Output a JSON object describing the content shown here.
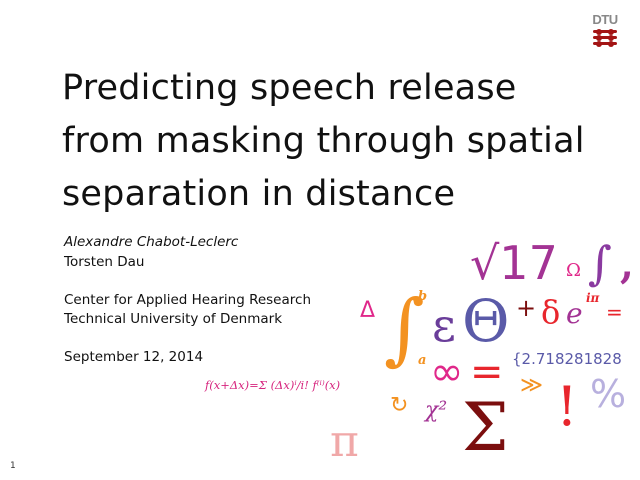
{
  "slide": {
    "title_lines": [
      "Predicting speech release",
      "from masking through spatial",
      "separation in distance"
    ],
    "authors": [
      "Alexandre Chabot-Leclerc",
      "Torsten Dau"
    ],
    "affiliation": [
      "Center for Applied Hearing Research",
      "Technical University of Denmark"
    ],
    "date": "September 12, 2014",
    "page_number": "1"
  },
  "logo": {
    "text": "DTU",
    "color": "#a31515"
  },
  "artwork": {
    "glyphs": {
      "taylor": "f(x+Δx)=Σ (Δx)ⁱ/i! f⁽ⁱ⁾(x)",
      "delta": "Δ",
      "integral": "∫",
      "b": "b",
      "a": "a",
      "epsilon": "ε",
      "theta": "Θ",
      "sqrt17": "√17",
      "plus": "+",
      "infinity": "∞",
      "equals": "=",
      "pi": "π",
      "omega": "Ω",
      "integral2": "∫",
      "small_delta": "δ",
      "e_ipi": "e",
      "ipi": "iπ",
      "eq2": "=",
      "euler": "{2.718281828",
      "percent": "%",
      "chi": "χ²",
      "sigma": "Σ",
      "excl": "!",
      "guillemet": "≫",
      "comma": ",",
      "arrow": "↻"
    },
    "colors": {
      "magenta": "#d6247e",
      "orange": "#f39221",
      "purple": "#6a3d9a",
      "blue": "#5a5aa8",
      "red": "#e8262d",
      "darkred": "#7b0e0e",
      "violet": "#a33394"
    }
  }
}
